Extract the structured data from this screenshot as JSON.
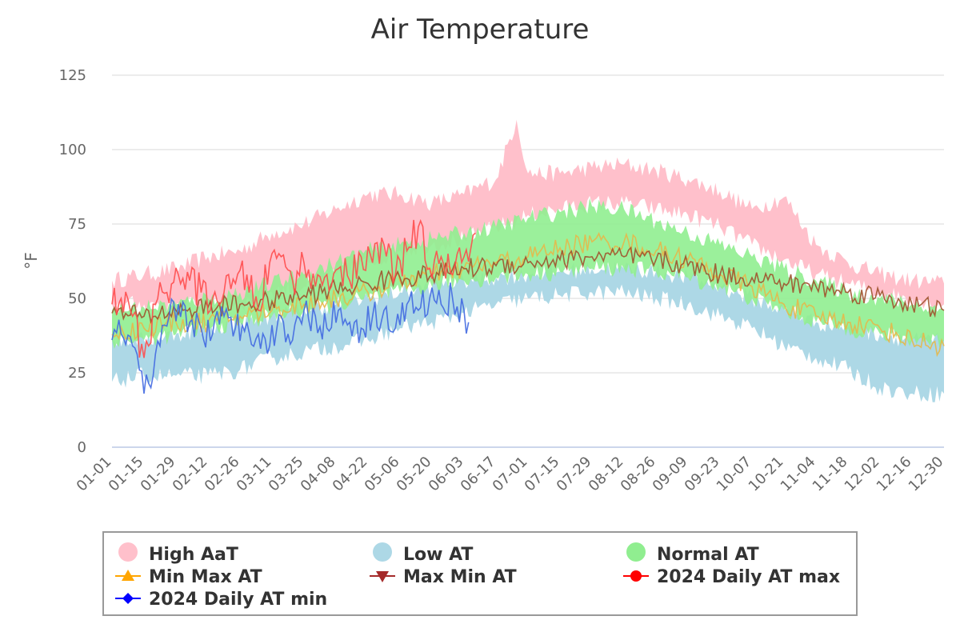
{
  "chart_data": {
    "type": "area",
    "title": "Air Temperature",
    "ylabel": "°F",
    "xlabel": "",
    "ylim": [
      0,
      125
    ],
    "yticks": [
      "0",
      "25",
      "50",
      "75",
      "100",
      "125"
    ],
    "x_day_range": [
      1,
      365
    ],
    "x_ticks": [
      {
        "label": "01-01",
        "day": 1
      },
      {
        "label": "01-15",
        "day": 15
      },
      {
        "label": "01-29",
        "day": 29
      },
      {
        "label": "02-12",
        "day": 43
      },
      {
        "label": "02-26",
        "day": 57
      },
      {
        "label": "03-11",
        "day": 71
      },
      {
        "label": "03-25",
        "day": 85
      },
      {
        "label": "04-08",
        "day": 99
      },
      {
        "label": "04-22",
        "day": 113
      },
      {
        "label": "05-06",
        "day": 127
      },
      {
        "label": "05-20",
        "day": 141
      },
      {
        "label": "06-03",
        "day": 155
      },
      {
        "label": "06-17",
        "day": 169
      },
      {
        "label": "07-01",
        "day": 183
      },
      {
        "label": "07-15",
        "day": 197
      },
      {
        "label": "07-29",
        "day": 211
      },
      {
        "label": "08-12",
        "day": 225
      },
      {
        "label": "08-26",
        "day": 239
      },
      {
        "label": "09-09",
        "day": 253
      },
      {
        "label": "09-23",
        "day": 267
      },
      {
        "label": "10-07",
        "day": 281
      },
      {
        "label": "10-21",
        "day": 295
      },
      {
        "label": "11-04",
        "day": 309
      },
      {
        "label": "11-18",
        "day": 323
      },
      {
        "label": "12-02",
        "day": 337
      },
      {
        "label": "12-16",
        "day": 351
      },
      {
        "label": "12-30",
        "day": 365
      }
    ],
    "legend_position": "bottom",
    "series": [
      {
        "name": "High AaT",
        "kind": "band",
        "color": "#ffc0cb",
        "days": [
          1,
          15,
          29,
          43,
          57,
          71,
          85,
          99,
          113,
          127,
          141,
          155,
          169,
          178,
          183,
          197,
          211,
          225,
          239,
          253,
          267,
          281,
          295,
          309,
          323,
          337,
          351,
          365
        ],
        "upper": [
          56,
          58,
          60,
          64,
          66,
          72,
          75,
          80,
          85,
          85,
          82,
          85,
          90,
          110,
          92,
          92,
          94,
          95,
          93,
          90,
          86,
          80,
          84,
          68,
          62,
          58,
          56,
          55
        ],
        "lower": [
          48,
          48,
          48,
          48,
          48,
          52,
          54,
          58,
          62,
          66,
          68,
          70,
          74,
          76,
          78,
          80,
          82,
          82,
          80,
          78,
          74,
          68,
          63,
          58,
          55,
          52,
          50,
          48
        ]
      },
      {
        "name": "Low AT",
        "kind": "band",
        "color": "#add8e6",
        "days": [
          1,
          15,
          29,
          43,
          57,
          71,
          85,
          99,
          113,
          127,
          141,
          155,
          169,
          183,
          197,
          211,
          225,
          239,
          253,
          267,
          281,
          295,
          309,
          323,
          337,
          351,
          365
        ],
        "upper": [
          36,
          36,
          38,
          40,
          42,
          44,
          46,
          48,
          50,
          52,
          54,
          56,
          57,
          58,
          59,
          60,
          60,
          59,
          57,
          54,
          50,
          46,
          42,
          40,
          38,
          36,
          36
        ],
        "lower": [
          22,
          24,
          24,
          24,
          26,
          30,
          32,
          34,
          36,
          40,
          42,
          45,
          48,
          50,
          51,
          52,
          52,
          50,
          48,
          44,
          40,
          34,
          30,
          26,
          20,
          18,
          18
        ]
      },
      {
        "name": "Normal AT",
        "kind": "band",
        "color": "#90ee90",
        "days": [
          1,
          15,
          29,
          43,
          57,
          71,
          85,
          99,
          113,
          127,
          141,
          155,
          169,
          183,
          197,
          211,
          225,
          239,
          253,
          267,
          281,
          295,
          309,
          323,
          337,
          351,
          365
        ],
        "upper": [
          46,
          47,
          48,
          50,
          52,
          55,
          58,
          62,
          66,
          68,
          70,
          72,
          74,
          77,
          79,
          81,
          80,
          76,
          72,
          68,
          64,
          60,
          56,
          52,
          50,
          48,
          46
        ],
        "lower": [
          36,
          36,
          38,
          40,
          42,
          44,
          46,
          48,
          50,
          52,
          54,
          56,
          57,
          58,
          59,
          60,
          60,
          59,
          57,
          54,
          50,
          46,
          42,
          40,
          38,
          36,
          36
        ]
      },
      {
        "name": "Min Max AT",
        "kind": "line",
        "marker": "triangle",
        "color": "#e6b84a",
        "days": [
          1,
          15,
          29,
          43,
          57,
          71,
          85,
          99,
          113,
          127,
          141,
          155,
          169,
          183,
          197,
          211,
          225,
          239,
          253,
          267,
          281,
          295,
          309,
          323,
          337,
          351,
          365
        ],
        "values": [
          38,
          40,
          42,
          42,
          44,
          46,
          48,
          50,
          52,
          56,
          58,
          60,
          62,
          64,
          67,
          69,
          69,
          66,
          63,
          58,
          54,
          48,
          44,
          42,
          40,
          36,
          34
        ]
      },
      {
        "name": "Max Min AT",
        "kind": "line",
        "marker": "triangle-down",
        "color": "#a0522d",
        "days": [
          1,
          15,
          29,
          43,
          57,
          71,
          85,
          99,
          113,
          127,
          141,
          155,
          169,
          183,
          197,
          211,
          225,
          239,
          253,
          267,
          281,
          295,
          309,
          323,
          337,
          351,
          365
        ],
        "values": [
          45,
          44,
          46,
          47,
          48,
          49,
          51,
          53,
          55,
          57,
          58,
          60,
          61,
          62,
          63,
          64,
          64,
          63,
          61,
          58,
          57,
          55,
          54,
          52,
          51,
          48,
          46
        ]
      },
      {
        "name": "2024 Daily AT max",
        "kind": "line",
        "marker": "circle",
        "color": "#ff4d4d",
        "days": [
          1,
          5,
          10,
          15,
          20,
          25,
          30,
          35,
          40,
          45,
          50,
          55,
          60,
          65,
          70,
          75,
          80,
          85,
          90,
          95,
          100,
          105,
          110,
          115,
          120,
          125,
          130,
          135,
          140,
          145,
          150,
          155,
          160
        ],
        "values": [
          48,
          50,
          44,
          30,
          48,
          52,
          58,
          56,
          52,
          50,
          52,
          55,
          58,
          46,
          62,
          64,
          56,
          62,
          54,
          58,
          60,
          56,
          64,
          62,
          68,
          58,
          66,
          74,
          60,
          64,
          58,
          64,
          72
        ]
      },
      {
        "name": "2024 Daily AT min",
        "kind": "line",
        "marker": "diamond",
        "color": "#4169e1",
        "days": [
          1,
          5,
          10,
          15,
          18,
          22,
          26,
          30,
          35,
          40,
          45,
          50,
          55,
          60,
          65,
          70,
          75,
          80,
          85,
          90,
          95,
          100,
          105,
          110,
          115,
          120,
          125,
          130,
          135,
          140,
          145,
          150,
          155,
          157
        ],
        "values": [
          36,
          38,
          34,
          18,
          20,
          34,
          44,
          48,
          42,
          40,
          38,
          44,
          40,
          42,
          38,
          34,
          44,
          36,
          46,
          44,
          40,
          46,
          42,
          40,
          44,
          46,
          40,
          48,
          46,
          50,
          48,
          50,
          46,
          42
        ]
      }
    ]
  },
  "legend": {
    "items": [
      {
        "label": "High AaT",
        "color": "#ffc0cb",
        "symbol": "circle-large"
      },
      {
        "label": "Low AT",
        "color": "#add8e6",
        "symbol": "circle-large"
      },
      {
        "label": "Normal AT",
        "color": "#90ee90",
        "symbol": "circle-large"
      },
      {
        "label": "Min Max AT",
        "color": "#ffa500",
        "symbol": "triangle"
      },
      {
        "label": "Max Min AT",
        "color": "#a52a2a",
        "symbol": "triangle-down"
      },
      {
        "label": "2024 Daily AT max",
        "color": "#ff0000",
        "symbol": "circle"
      },
      {
        "label": "2024 Daily AT min",
        "color": "#0000ff",
        "symbol": "diamond"
      }
    ]
  }
}
